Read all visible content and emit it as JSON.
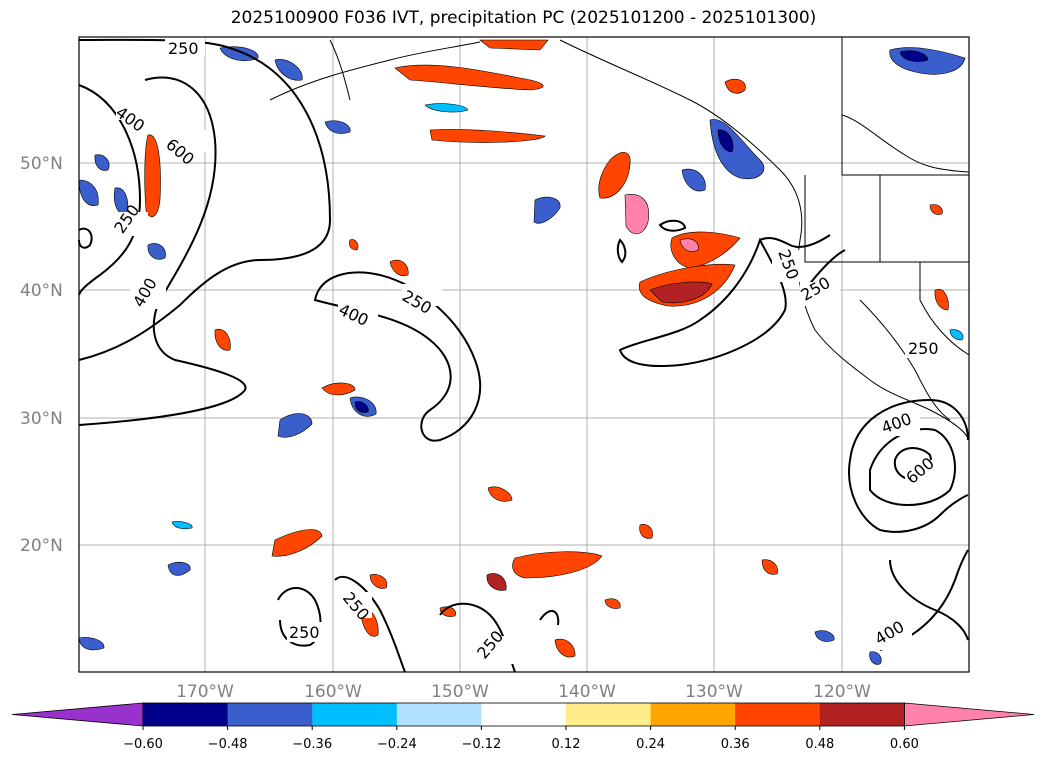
{
  "title": "2025100900 F036 IVT, precipitation PC (2025101200 - 2025101300)",
  "map": {
    "lat_labels": [
      "50°N",
      "40°N",
      "30°N",
      "20°N"
    ],
    "lon_labels": [
      "170°W",
      "160°W",
      "150°W",
      "140°W",
      "130°W",
      "120°W"
    ],
    "contour_labels": [
      "250",
      "400",
      "600",
      "250",
      "400",
      "250",
      "400",
      "250",
      "250",
      "250",
      "400",
      "600",
      "250",
      "250",
      "250",
      "400"
    ]
  },
  "colorbar": {
    "ticks": [
      "−0.60",
      "−0.48",
      "−0.36",
      "−0.24",
      "−0.12",
      "0.12",
      "0.24",
      "0.36",
      "0.48",
      "0.60"
    ],
    "colors": [
      "#9932cc",
      "#00008b",
      "#3a5fcd",
      "#00bfff",
      "#b0e2ff",
      "#ffffff",
      "#ffec8b",
      "#ffa500",
      "#ff4500",
      "#b22222",
      "#ff82ab"
    ]
  }
}
